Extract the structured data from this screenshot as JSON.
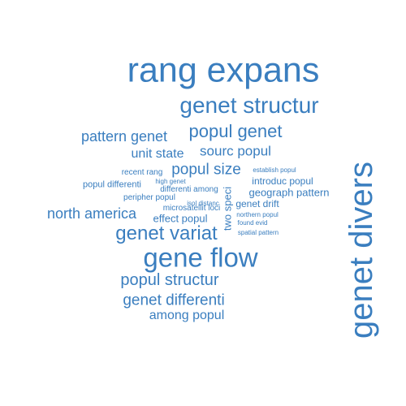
{
  "color": "#3a7ebf",
  "words": [
    {
      "text": "rang expans",
      "weight": 100
    },
    {
      "text": "genet divers",
      "weight": 98,
      "orientation": "vertical"
    },
    {
      "text": "genet structur",
      "weight": 66
    },
    {
      "text": "gene flow",
      "weight": 76
    },
    {
      "text": "genet variat",
      "weight": 52
    },
    {
      "text": "popul genet",
      "weight": 48
    },
    {
      "text": "pattern genet",
      "weight": 42
    },
    {
      "text": "popul size",
      "weight": 42
    },
    {
      "text": "north america",
      "weight": 40
    },
    {
      "text": "popul structur",
      "weight": 44
    },
    {
      "text": "genet differenti",
      "weight": 44
    },
    {
      "text": "sourc popul",
      "weight": 38
    },
    {
      "text": "unit state",
      "weight": 36
    },
    {
      "text": "among popul",
      "weight": 36
    },
    {
      "text": "geograph pattern",
      "weight": 28
    },
    {
      "text": "two speci",
      "weight": 28,
      "orientation": "vertical"
    },
    {
      "text": "effect popul",
      "weight": 26
    },
    {
      "text": "introduc popul",
      "weight": 24
    },
    {
      "text": "genet drift",
      "weight": 24
    },
    {
      "text": "popul differenti",
      "weight": 22
    },
    {
      "text": "peripher popul",
      "weight": 20
    },
    {
      "text": "recent rang",
      "weight": 20
    },
    {
      "text": "differenti among",
      "weight": 19
    },
    {
      "text": "microsatellit loci",
      "weight": 19
    },
    {
      "text": "high genet",
      "weight": 16
    },
    {
      "text": "isol distanc",
      "weight": 16
    },
    {
      "text": "establish popul",
      "weight": 16
    },
    {
      "text": "northern popul",
      "weight": 16
    },
    {
      "text": "found evid",
      "weight": 16
    },
    {
      "text": "spatial pattern",
      "weight": 16
    }
  ]
}
